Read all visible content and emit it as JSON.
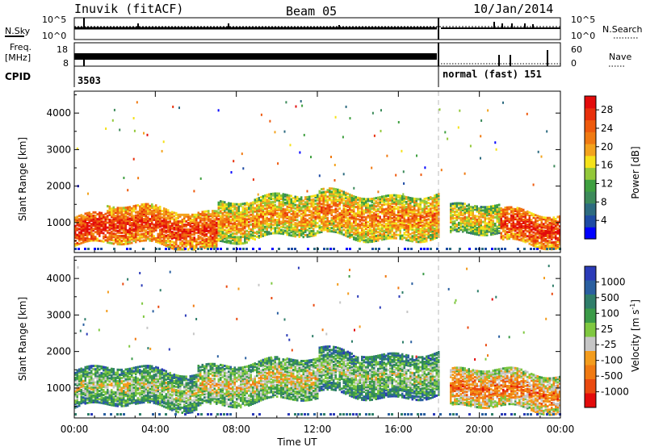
{
  "header": {
    "station": "Inuvik (fitACF)",
    "beam": "Beam 05",
    "date": "10/Jan/2014"
  },
  "status_panels": {
    "nsky": {
      "label": "N.Sky",
      "tick_top": "10^5",
      "tick_bottom": "10^0"
    },
    "nsearch": {
      "label": "N.Search",
      "tick_top": "10^5",
      "tick_bottom": "10^0"
    },
    "freq": {
      "label_line1": "Freq.",
      "label_line2": "[MHz]",
      "tick_top": "18",
      "tick_bottom": "8"
    },
    "nave": {
      "label": "Nave",
      "tick_top": "60",
      "tick_bottom": "0"
    },
    "cpid": {
      "label": "CPID",
      "segments": [
        {
          "text": "3503",
          "start_hour": 0.0
        },
        {
          "text": "normal (fast)  151",
          "start_hour": 18.0
        }
      ]
    }
  },
  "chart_data": [
    {
      "type": "heatmap",
      "name": "power",
      "ylabel": "Slant Range [km]",
      "xlabel": "Time UT",
      "x_ticks": [
        "00:00",
        "04:00",
        "08:00",
        "12:00",
        "16:00",
        "20:00",
        "00:00"
      ],
      "xlim_hours": [
        0,
        24
      ],
      "y_ticks": [
        1000,
        2000,
        3000,
        4000
      ],
      "ylim": [
        180,
        4600
      ],
      "mode_change_hour": 18.0,
      "colorbar": {
        "label": "Power [dB]",
        "ticks": [
          "4",
          "8",
          "12",
          "16",
          "20",
          "24",
          "28"
        ],
        "range": [
          0,
          31
        ],
        "colors": [
          "#0000ff",
          "#1e4ba4",
          "#2d6b80",
          "#3c8a5a",
          "#3fa040",
          "#93c83a",
          "#f5e21a",
          "#f3a31d",
          "#f07a12",
          "#ee5a0d",
          "#e8300c",
          "#e30b0b"
        ]
      },
      "bands": [
        {
          "t0": 0.0,
          "t1": 1.5,
          "center": 800,
          "width": 400,
          "level": 0.95
        },
        {
          "t0": 1.5,
          "t1": 7.0,
          "center": 900,
          "width": 500,
          "level": 0.85
        },
        {
          "t0": 7.0,
          "t1": 12.0,
          "center": 1150,
          "width": 550,
          "level": 0.6
        },
        {
          "t0": 12.0,
          "t1": 18.0,
          "center": 1250,
          "width": 600,
          "level": 0.65
        },
        {
          "t0": 18.5,
          "t1": 21.0,
          "center": 1050,
          "width": 400,
          "level": 0.5
        },
        {
          "t0": 21.0,
          "t1": 24.0,
          "center": 900,
          "width": 450,
          "level": 0.9
        }
      ]
    },
    {
      "type": "heatmap",
      "name": "velocity",
      "ylabel": "Slant Range [km]",
      "xlabel": "Time UT",
      "x_ticks": [
        "00:00",
        "04:00",
        "08:00",
        "12:00",
        "16:00",
        "20:00",
        "00:00"
      ],
      "xlim_hours": [
        0,
        24
      ],
      "y_ticks": [
        1000,
        2000,
        3000,
        4000
      ],
      "ylim": [
        180,
        4600
      ],
      "mode_change_hour": 18.0,
      "colorbar": {
        "label": "Velocity [m s",
        "label_sup": "-1",
        "label_end": "]",
        "ticks": [
          "1000",
          "500",
          "100",
          "25",
          "-25",
          "-100",
          "-500",
          "-1000"
        ],
        "colors": [
          "#2b3bb8",
          "#2a5fa0",
          "#2f7e6a",
          "#3b9b48",
          "#7fc840",
          "#c6c6c6",
          "#f39c1d",
          "#f07a12",
          "#ea4a10",
          "#e30b0b"
        ]
      },
      "bands": [
        {
          "t0": 0.0,
          "t1": 6.0,
          "center": 1000,
          "width": 500,
          "level": 0.35
        },
        {
          "t0": 6.0,
          "t1": 12.0,
          "center": 1200,
          "width": 550,
          "level": 0.45
        },
        {
          "t0": 12.0,
          "t1": 18.0,
          "center": 1450,
          "width": 600,
          "level": 0.3
        },
        {
          "t0": 18.5,
          "t1": 24.0,
          "center": 950,
          "width": 500,
          "level": 0.7
        }
      ]
    }
  ]
}
